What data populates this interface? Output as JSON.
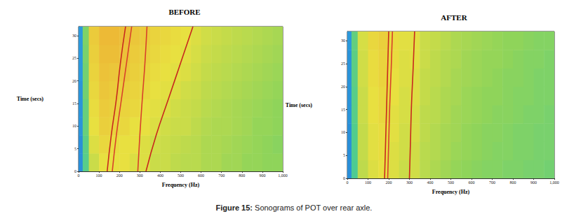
{
  "caption": "Figure 15: Sonograms of POT over rear axle.",
  "chart_data": [
    {
      "type": "heatmap",
      "title": "BEFORE",
      "x_label": "Frequency (Hz)",
      "y_label": "Time (secs)",
      "xlim": [
        0,
        1000
      ],
      "xticks": [
        0,
        100,
        200,
        300,
        400,
        500,
        600,
        700,
        800,
        900,
        1000
      ],
      "ylim": [
        0,
        32
      ],
      "yticks": [
        0,
        5,
        10,
        15,
        20,
        25,
        30
      ],
      "x_bins": [
        0,
        20,
        50,
        100,
        150,
        200,
        250,
        300,
        350,
        400,
        450,
        500,
        550,
        600,
        650,
        700,
        750,
        800,
        850,
        900,
        950,
        1000
      ],
      "y_bins": [
        0,
        4,
        8,
        12,
        16,
        20,
        24,
        28,
        32
      ],
      "value_range": [
        0,
        10
      ],
      "cells": [
        [
          1.5,
          4.5,
          6.5,
          7,
          7,
          7,
          6.8,
          6.8,
          6.5,
          6.5,
          6.3,
          6.2,
          6.2,
          6,
          6,
          5.8,
          5.8,
          5.6,
          5.6,
          5.5,
          5.5
        ],
        [
          1.5,
          4.6,
          6.8,
          7.2,
          7.1,
          7,
          7,
          6.8,
          6.6,
          6.5,
          6.4,
          6.3,
          6.2,
          6,
          6,
          5.9,
          5.8,
          5.7,
          5.6,
          5.5,
          5.4
        ],
        [
          1.6,
          4.8,
          7,
          7.4,
          7.3,
          7.2,
          7,
          7,
          6.8,
          6.6,
          6.5,
          6.5,
          6.3,
          6.1,
          6,
          6,
          5.9,
          5.8,
          5.6,
          5.6,
          5.5
        ],
        [
          1.6,
          4.8,
          7.1,
          7.5,
          7.4,
          7.3,
          7.2,
          7,
          6.9,
          6.8,
          6.6,
          6.5,
          6.4,
          6.2,
          6.1,
          6,
          5.9,
          5.8,
          5.7,
          5.6,
          5.5
        ],
        [
          1.6,
          5,
          7.2,
          7.6,
          7.5,
          7.4,
          7.3,
          7.2,
          7,
          6.9,
          6.8,
          6.6,
          6.5,
          6.3,
          6.2,
          6.1,
          6,
          5.9,
          5.8,
          5.7,
          5.6
        ],
        [
          1.7,
          5,
          7.3,
          7.7,
          7.6,
          7.6,
          7.4,
          7.3,
          7.1,
          7,
          6.9,
          6.8,
          6.6,
          6.4,
          6.3,
          6.2,
          6.1,
          6,
          5.9,
          5.8,
          5.7
        ],
        [
          1.7,
          5.1,
          7.4,
          7.8,
          7.8,
          7.7,
          7.5,
          7.4,
          7.2,
          7.1,
          7,
          6.9,
          6.7,
          6.5,
          6.4,
          6.3,
          6.2,
          6.1,
          6,
          5.9,
          5.8
        ],
        [
          1.7,
          5.2,
          7.5,
          7.9,
          7.9,
          7.8,
          7.6,
          7.5,
          7.3,
          7.2,
          7.1,
          7,
          6.8,
          6.6,
          6.5,
          6.4,
          6.3,
          6.2,
          6.1,
          6,
          5.9
        ]
      ],
      "orders": [
        {
          "color": "#c8281e",
          "x": [
            140,
            160,
            185,
            205,
            230
          ],
          "y": [
            0,
            8,
            16,
            24,
            32
          ]
        },
        {
          "color": "#d8402a",
          "x": [
            165,
            185,
            210,
            235,
            260
          ],
          "y": [
            0,
            8,
            16,
            24,
            32
          ]
        },
        {
          "color": "#d8402a",
          "x": [
            290,
            300,
            312,
            325,
            335
          ],
          "y": [
            0,
            8,
            16,
            24,
            32
          ]
        },
        {
          "color": "#c8281e",
          "x": [
            330,
            380,
            440,
            500,
            560
          ],
          "y": [
            0,
            8,
            16,
            24,
            32
          ]
        }
      ]
    },
    {
      "type": "heatmap",
      "title": "AFTER",
      "x_label": "Frequency (Hz)",
      "y_label": "Time (secs)",
      "xlim": [
        0,
        1000
      ],
      "xticks": [
        0,
        100,
        200,
        300,
        400,
        500,
        600,
        700,
        800,
        900,
        1000
      ],
      "ylim": [
        0,
        32
      ],
      "yticks": [
        0,
        5,
        10,
        15,
        20,
        25,
        30
      ],
      "x_bins": [
        0,
        20,
        50,
        100,
        150,
        200,
        250,
        300,
        350,
        400,
        450,
        500,
        550,
        600,
        650,
        700,
        750,
        800,
        850,
        900,
        950,
        1000
      ],
      "y_bins": [
        0,
        4,
        8,
        12,
        16,
        20,
        24,
        28,
        32
      ],
      "value_range": [
        0,
        10
      ],
      "cells": [
        [
          1.5,
          4.3,
          6.3,
          6.8,
          7,
          6.8,
          6.5,
          6.6,
          6.2,
          6,
          5.8,
          5.6,
          5.5,
          5.4,
          5.3,
          5.3,
          5.2,
          5.2,
          5.1,
          5.1,
          5
        ],
        [
          1.5,
          4.4,
          6.4,
          6.9,
          7.1,
          6.8,
          6.6,
          6.6,
          6.2,
          6.1,
          5.9,
          5.7,
          5.6,
          5.5,
          5.4,
          5.3,
          5.3,
          5.2,
          5.2,
          5.1,
          5.1
        ],
        [
          1.5,
          4.4,
          6.4,
          6.9,
          7.1,
          6.9,
          6.6,
          6.7,
          6.3,
          6.1,
          5.9,
          5.8,
          5.6,
          5.5,
          5.4,
          5.4,
          5.3,
          5.2,
          5.2,
          5.1,
          5.1
        ],
        [
          1.6,
          4.5,
          6.5,
          7,
          7.2,
          6.9,
          6.7,
          6.7,
          6.3,
          6.2,
          6,
          5.8,
          5.7,
          5.6,
          5.5,
          5.4,
          5.4,
          5.3,
          5.2,
          5.2,
          5.1
        ],
        [
          1.6,
          4.5,
          6.5,
          7,
          7.2,
          7,
          6.7,
          6.8,
          6.4,
          6.2,
          6,
          5.9,
          5.7,
          5.6,
          5.5,
          5.5,
          5.4,
          5.3,
          5.3,
          5.2,
          5.2
        ],
        [
          1.6,
          4.6,
          6.6,
          7.1,
          7.3,
          7,
          6.8,
          6.8,
          6.4,
          6.3,
          6.1,
          5.9,
          5.8,
          5.7,
          5.6,
          5.5,
          5.4,
          5.4,
          5.3,
          5.2,
          5.2
        ],
        [
          1.6,
          4.6,
          6.6,
          7.1,
          7.3,
          7.1,
          6.8,
          6.9,
          6.5,
          6.3,
          6.1,
          6,
          5.8,
          5.7,
          5.6,
          5.6,
          5.5,
          5.4,
          5.3,
          5.3,
          5.2
        ],
        [
          1.7,
          4.7,
          6.7,
          7.2,
          7.4,
          7.1,
          6.9,
          6.9,
          6.5,
          6.4,
          6.2,
          6,
          5.9,
          5.8,
          5.7,
          5.6,
          5.5,
          5.5,
          5.4,
          5.3,
          5.3
        ]
      ],
      "orders": [
        {
          "color": "#c8281e",
          "x": [
            180,
            185,
            190,
            195,
            200
          ],
          "y": [
            0,
            8,
            16,
            24,
            32
          ]
        },
        {
          "color": "#d8402a",
          "x": [
            195,
            200,
            205,
            212,
            218
          ],
          "y": [
            0,
            8,
            16,
            24,
            32
          ]
        },
        {
          "color": "#c8281e",
          "x": [
            300,
            305,
            310,
            318,
            325
          ],
          "y": [
            0,
            8,
            16,
            24,
            32
          ]
        }
      ]
    }
  ]
}
